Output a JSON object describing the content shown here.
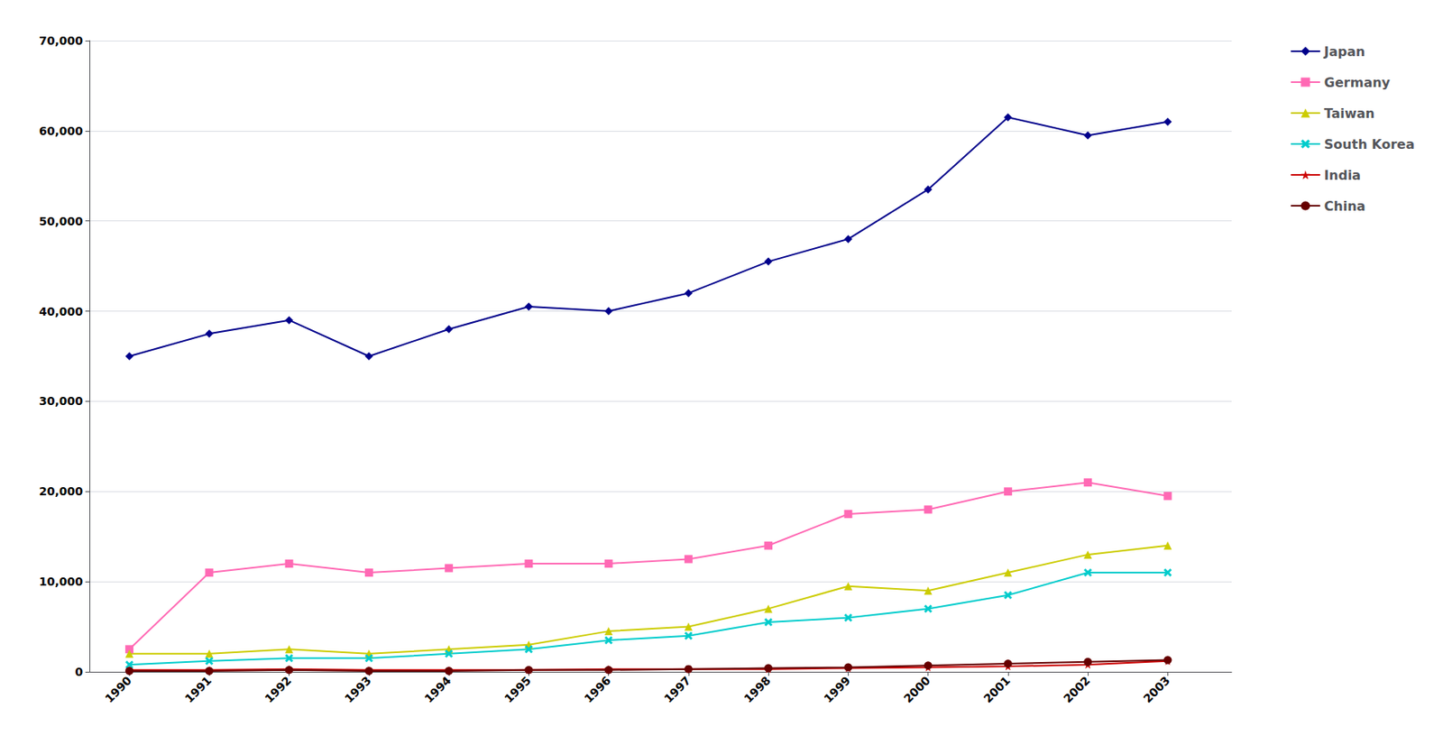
{
  "chart_data": {
    "type": "line",
    "x": [
      1990,
      1991,
      1992,
      1993,
      1994,
      1995,
      1996,
      1997,
      1998,
      1999,
      2000,
      2001,
      2002,
      2003
    ],
    "series": [
      {
        "name": "Japan",
        "color": "#00008B",
        "marker": "diamond",
        "values": [
          35000,
          37500,
          39000,
          35000,
          38000,
          40500,
          40000,
          42000,
          45500,
          48000,
          53500,
          61500,
          59500,
          61000
        ]
      },
      {
        "name": "Germany",
        "color": "#FF69B4",
        "marker": "square",
        "values": [
          2500,
          11000,
          12000,
          11000,
          11500,
          12000,
          12000,
          12500,
          14000,
          17500,
          18000,
          20000,
          21000,
          19500
        ]
      },
      {
        "name": "Taiwan",
        "color": "#CCCC00",
        "marker": "triangle",
        "values": [
          2000,
          2000,
          2500,
          2000,
          2500,
          3000,
          4500,
          5000,
          7000,
          9500,
          9000,
          11000,
          13000,
          14000
        ]
      },
      {
        "name": "South Korea",
        "color": "#00CCCC",
        "marker": "x",
        "values": [
          800,
          1200,
          1500,
          1500,
          2000,
          2500,
          3500,
          4000,
          5500,
          6000,
          7000,
          8500,
          11000,
          11000
        ]
      },
      {
        "name": "India",
        "color": "#CC0000",
        "marker": "star",
        "values": [
          200,
          200,
          300,
          200,
          200,
          200,
          300,
          300,
          300,
          400,
          500,
          600,
          800,
          1200
        ]
      },
      {
        "name": "China",
        "color": "#660000",
        "marker": "circle",
        "values": [
          100,
          100,
          200,
          100,
          100,
          200,
          200,
          300,
          400,
          500,
          700,
          900,
          1100,
          1300
        ]
      }
    ],
    "xlim": [
      1989.5,
      2003.8
    ],
    "xticks": [
      1990,
      1991,
      1992,
      1993,
      1994,
      1995,
      1996,
      1997,
      1998,
      1999,
      2000,
      2001,
      2002,
      2003
    ],
    "ylim": [
      0,
      70000
    ],
    "yticks": [
      0,
      {
        "value": 10000,
        "label": "10,000"
      },
      {
        "value": 20000,
        "label": "20,000"
      },
      {
        "value": 30000,
        "label": "30,000"
      },
      {
        "value": 40000,
        "label": "40,000"
      },
      {
        "value": 50000,
        "label": "50,000"
      },
      {
        "value": 60000,
        "label": "60,000"
      },
      {
        "value": 70000,
        "label": "70,000"
      }
    ],
    "grid": true,
    "legend": "right"
  }
}
